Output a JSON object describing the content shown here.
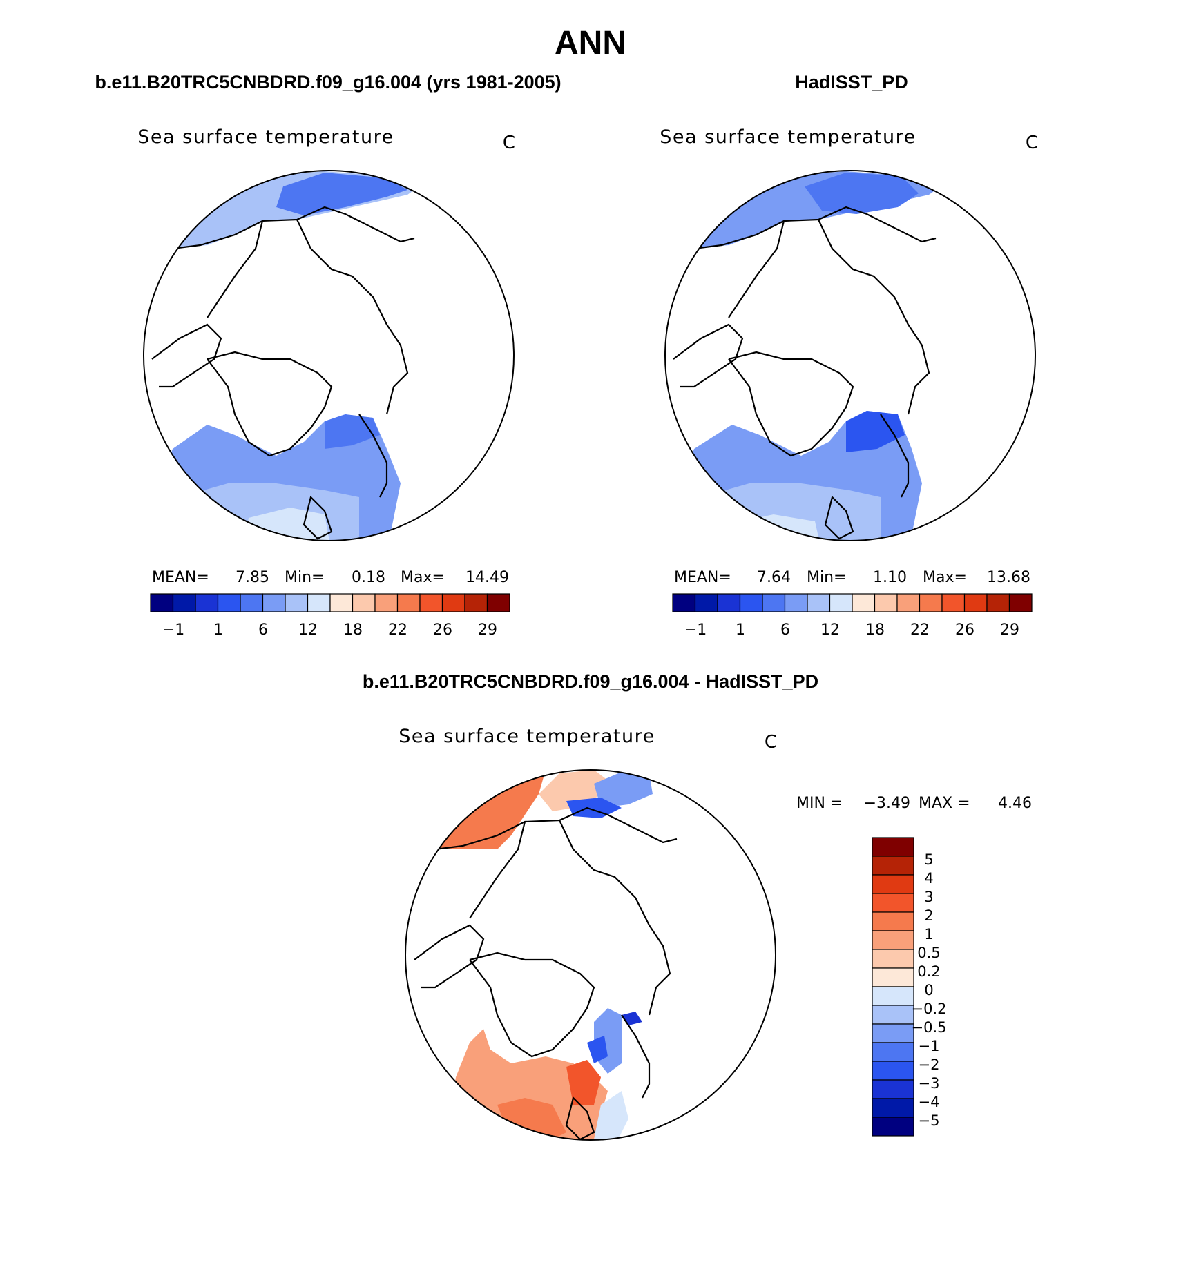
{
  "title": "ANN",
  "panels": [
    {
      "header": "b.e11.B20TRC5CNBDRD.f09_g16.004 (yrs 1981-2005)",
      "variable": "Sea surface temperature",
      "units": "C",
      "stats": {
        "mean_label": "MEAN=",
        "mean": "7.85",
        "min_label": "Min=",
        "min": "0.18",
        "max_label": "Max=",
        "max": "14.49"
      },
      "colorbar_ticks": [
        "−1",
        "1",
        "6",
        "12",
        "18",
        "22",
        "26",
        "29"
      ]
    },
    {
      "header": "HadISST_PD",
      "variable": "Sea surface temperature",
      "units": "C",
      "stats": {
        "mean_label": "MEAN=",
        "mean": "7.64",
        "min_label": "Min=",
        "min": "1.10",
        "max_label": "Max=",
        "max": "13.68"
      },
      "colorbar_ticks": [
        "−1",
        "1",
        "6",
        "12",
        "18",
        "22",
        "26",
        "29"
      ]
    }
  ],
  "diff_panel": {
    "header": "b.e11.B20TRC5CNBDRD.f09_g16.004 - HadISST_PD",
    "variable": "Sea surface temperature",
    "units": "C",
    "stats": {
      "min_label": "MIN =",
      "min": "−3.49",
      "max_label": "MAX =",
      "max": "4.46"
    },
    "colorbar_ticks": [
      "5",
      "4",
      "3",
      "2",
      "1",
      "0.5",
      "0.2",
      "0",
      "−0.2",
      "−0.5",
      "−1",
      "−2",
      "−3",
      "−4",
      "−5"
    ]
  },
  "colors": {
    "abs_scale": [
      "#000080",
      "#0019a8",
      "#1a33d4",
      "#2b55f0",
      "#4d76f2",
      "#7a9cf5",
      "#a9c2f8",
      "#d6e6fb",
      "#fde8d8",
      "#fcc9ad",
      "#f9a07a",
      "#f57a4d",
      "#f2552b",
      "#e03a12",
      "#b52306",
      "#7f0000"
    ],
    "diff_scale": [
      "#7f0000",
      "#b52306",
      "#e03a12",
      "#f2552b",
      "#f57a4d",
      "#f9a07a",
      "#fcc9ad",
      "#fde8d8",
      "#d6e6fb",
      "#a9c2f8",
      "#7a9cf5",
      "#4d76f2",
      "#2b55f0",
      "#1a33d4",
      "#0019a8",
      "#000080"
    ]
  }
}
